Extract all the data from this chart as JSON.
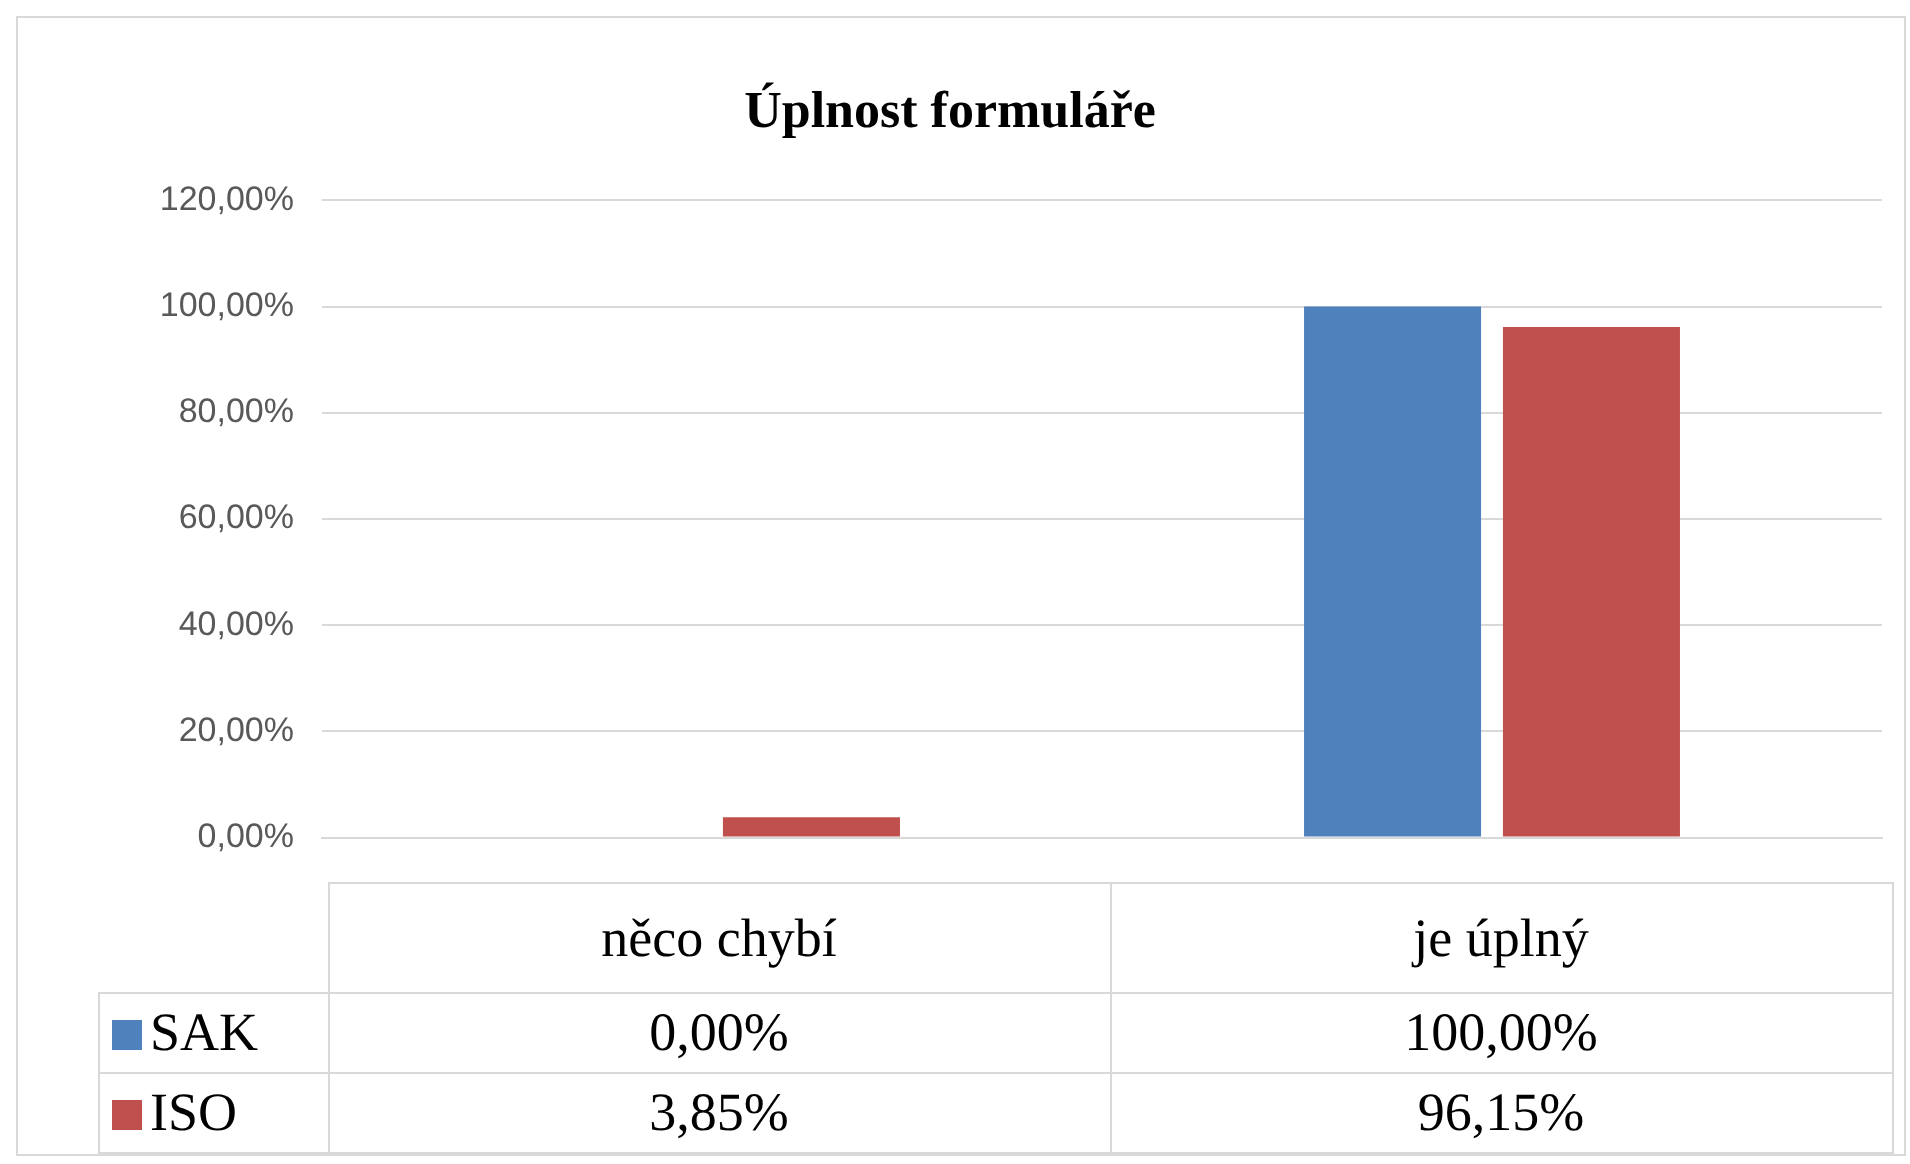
{
  "chart_data": {
    "type": "bar",
    "title": "Úplnost formuláře",
    "categories": [
      "něco chybí",
      "je úplný"
    ],
    "series": [
      {
        "name": "SAK",
        "color": "#4f81bd",
        "values": [
          0,
          100
        ],
        "value_labels": [
          "0,00%",
          "100,00%"
        ]
      },
      {
        "name": "ISO",
        "color": "#c0504d",
        "values": [
          3.85,
          96.15
        ],
        "value_labels": [
          "3,85%",
          "96,15%"
        ]
      }
    ],
    "ylim": [
      0,
      120
    ],
    "yticks": [
      {
        "value": 0,
        "label": "0,00%"
      },
      {
        "value": 20,
        "label": "20,00%"
      },
      {
        "value": 40,
        "label": "40,00%"
      },
      {
        "value": 60,
        "label": "60,00%"
      },
      {
        "value": 80,
        "label": "80,00%"
      },
      {
        "value": 100,
        "label": "100,00%"
      },
      {
        "value": 120,
        "label": "120,00%"
      }
    ],
    "grid": "y",
    "legend": "bottom"
  }
}
